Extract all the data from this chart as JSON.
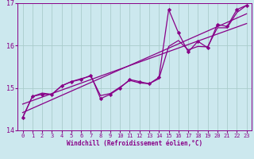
{
  "xlabel": "Windchill (Refroidissement éolien,°C)",
  "ylabel": "",
  "bg_color": "#cce8ee",
  "grid_color": "#aacccc",
  "line_color": "#880088",
  "xlim": [
    -0.5,
    23.5
  ],
  "ylim": [
    14.0,
    17.0
  ],
  "yticks": [
    14,
    15,
    16,
    17
  ],
  "xticks": [
    0,
    1,
    2,
    3,
    4,
    5,
    6,
    7,
    8,
    9,
    10,
    11,
    12,
    13,
    14,
    15,
    16,
    17,
    18,
    19,
    20,
    21,
    22,
    23
  ],
  "main_x": [
    0,
    1,
    2,
    3,
    4,
    5,
    6,
    7,
    8,
    9,
    10,
    11,
    12,
    13,
    14,
    15,
    16,
    17,
    18,
    19,
    20,
    21,
    22,
    23
  ],
  "main_y": [
    14.3,
    14.8,
    14.85,
    14.85,
    15.05,
    15.15,
    15.2,
    15.3,
    14.75,
    14.85,
    15.0,
    15.2,
    15.15,
    15.1,
    15.25,
    16.85,
    16.3,
    15.85,
    16.1,
    15.95,
    16.5,
    16.45,
    16.85,
    16.95
  ],
  "smooth_x": [
    0,
    1,
    2,
    3,
    4,
    5,
    6,
    7,
    8,
    9,
    10,
    11,
    12,
    13,
    14,
    15,
    16,
    17,
    18,
    19,
    20,
    21,
    22,
    23
  ],
  "smooth_y": [
    14.3,
    14.8,
    14.88,
    14.85,
    15.05,
    15.15,
    15.22,
    15.28,
    14.82,
    14.87,
    15.02,
    15.18,
    15.12,
    15.1,
    15.22,
    15.98,
    16.12,
    15.9,
    15.98,
    15.97,
    16.42,
    16.42,
    16.78,
    16.95
  ],
  "trend1_x": [
    0,
    23
  ],
  "trend1_y": [
    14.42,
    16.75
  ],
  "trend2_x": [
    0,
    23
  ],
  "trend2_y": [
    14.62,
    16.52
  ]
}
